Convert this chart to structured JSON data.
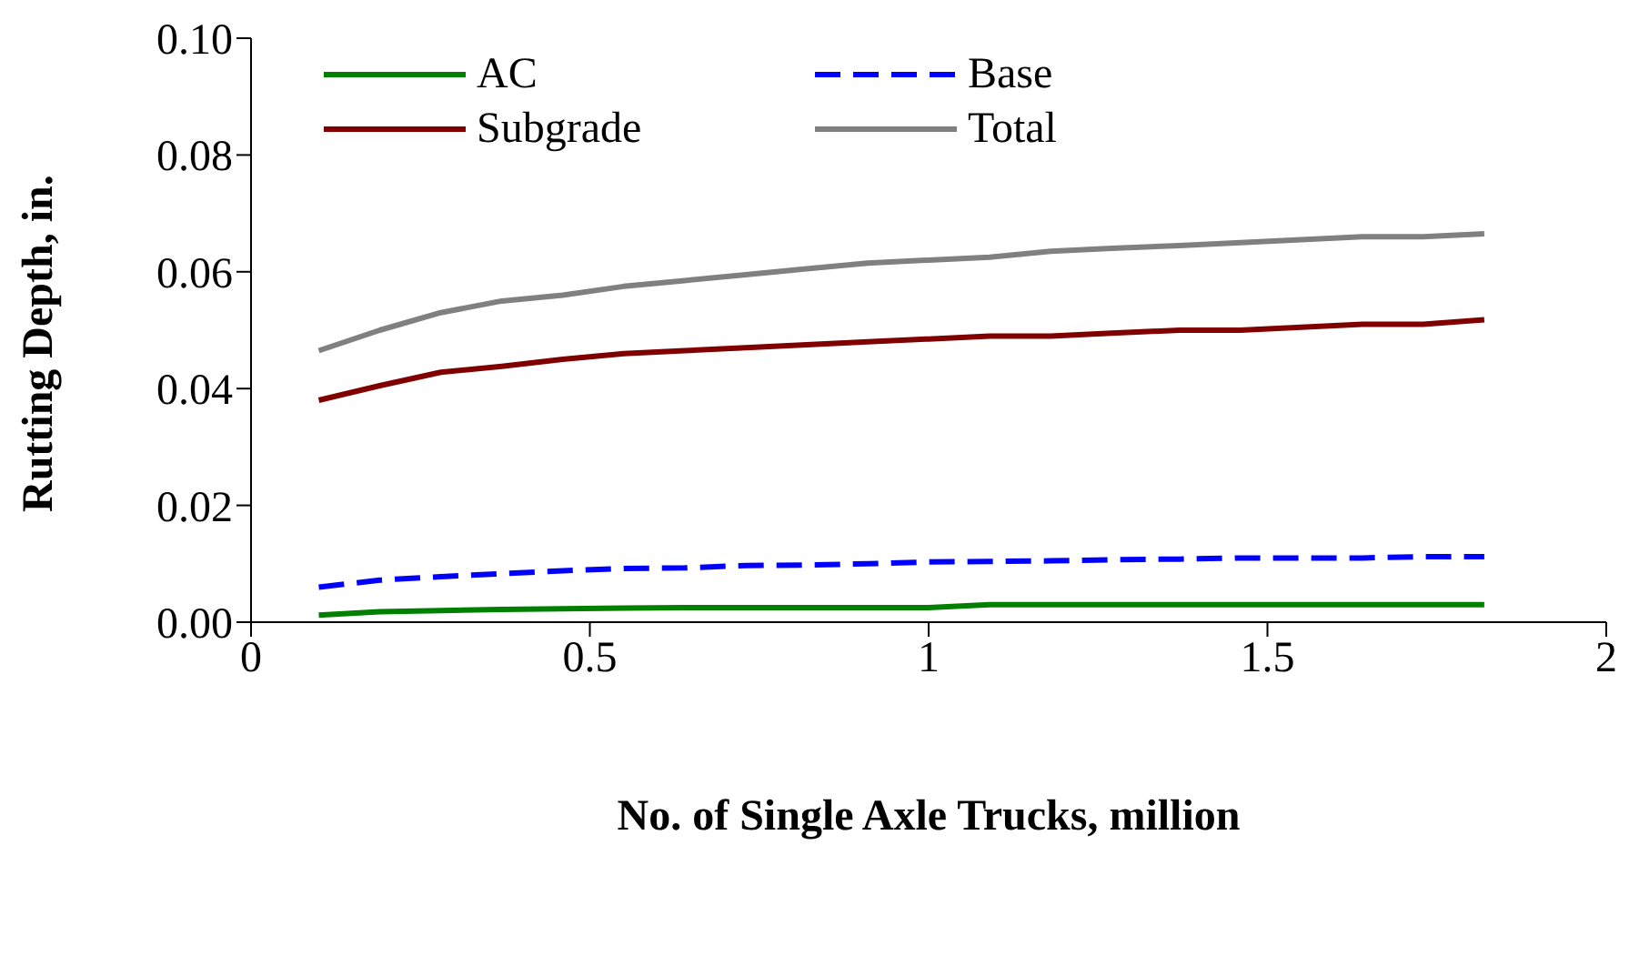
{
  "chart_data": {
    "type": "line",
    "xlabel": "No. of Single Axle Trucks, million",
    "ylabel": "Rutting Depth, in.",
    "x": [
      0.1,
      0.19,
      0.28,
      0.37,
      0.46,
      0.55,
      0.64,
      0.73,
      0.82,
      0.91,
      1.0,
      1.09,
      1.18,
      1.27,
      1.37,
      1.46,
      1.55,
      1.64,
      1.73,
      1.82
    ],
    "series": [
      {
        "name": "AC",
        "color": "#008000",
        "line_style": "solid",
        "values": [
          0.0012,
          0.0018,
          0.002,
          0.0022,
          0.0023,
          0.0024,
          0.0025,
          0.0025,
          0.0025,
          0.0025,
          0.0025,
          0.003,
          0.003,
          0.003,
          0.003,
          0.003,
          0.003,
          0.003,
          0.003,
          0.003
        ]
      },
      {
        "name": "Base",
        "color": "#0000ff",
        "line_style": "dashed",
        "values": [
          0.006,
          0.0072,
          0.0078,
          0.0083,
          0.0088,
          0.0092,
          0.0093,
          0.0097,
          0.0098,
          0.01,
          0.0103,
          0.0104,
          0.0105,
          0.0107,
          0.0108,
          0.011,
          0.011,
          0.011,
          0.0112,
          0.0112
        ]
      },
      {
        "name": "Subgrade",
        "color": "#800000",
        "line_style": "solid",
        "values": [
          0.038,
          0.0405,
          0.0428,
          0.0438,
          0.045,
          0.046,
          0.0465,
          0.047,
          0.0475,
          0.048,
          0.0485,
          0.049,
          0.049,
          0.0495,
          0.05,
          0.05,
          0.0505,
          0.051,
          0.051,
          0.0518
        ]
      },
      {
        "name": "Total",
        "color": "#808080",
        "line_style": "solid",
        "values": [
          0.0465,
          0.05,
          0.053,
          0.055,
          0.056,
          0.0575,
          0.0585,
          0.0595,
          0.0605,
          0.0615,
          0.062,
          0.0625,
          0.0635,
          0.064,
          0.0645,
          0.065,
          0.0655,
          0.066,
          0.066,
          0.0665
        ]
      }
    ],
    "xlim": [
      0,
      2
    ],
    "xticks": [
      0,
      0.5,
      1,
      1.5,
      2
    ],
    "ylim": [
      0,
      0.1
    ],
    "yticks": [
      {
        "value": 0,
        "label": "0.00"
      },
      {
        "value": 0.02,
        "label": "0.02"
      },
      {
        "value": 0.04,
        "label": "0.04"
      },
      {
        "value": 0.06,
        "label": "0.06"
      },
      {
        "value": 0.08,
        "label": "0.08"
      },
      {
        "value": 0.1,
        "label": "0.10"
      }
    ],
    "grid": false,
    "legend": "top left",
    "marker": "none"
  }
}
